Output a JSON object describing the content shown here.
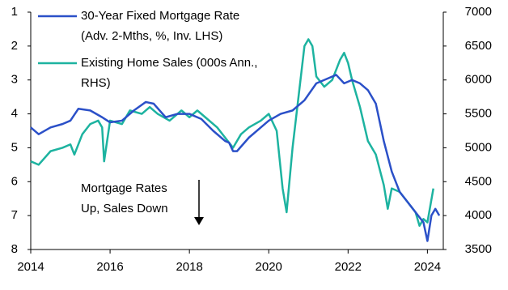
{
  "chart_data": {
    "type": "line",
    "series": [
      {
        "name": [
          "30-Year Fixed Mortgage Rate",
          "(Adv. 2-Mths, %, Inv. LHS)"
        ],
        "color": "#2b50c8",
        "axis": "y",
        "x": [
          2014.0,
          2014.2,
          2014.5,
          2014.8,
          2015.0,
          2015.2,
          2015.5,
          2015.8,
          2016.0,
          2016.3,
          2016.6,
          2016.9,
          2017.1,
          2017.4,
          2017.7,
          2018.0,
          2018.3,
          2018.6,
          2018.9,
          2019.0,
          2019.1,
          2019.2,
          2019.5,
          2019.8,
          2020.0,
          2020.3,
          2020.6,
          2020.9,
          2021.2,
          2021.5,
          2021.7,
          2021.9,
          2022.1,
          2022.3,
          2022.5,
          2022.7,
          2022.9,
          2023.1,
          2023.3,
          2023.5,
          2023.7,
          2023.9,
          2024.0,
          2024.1,
          2024.2,
          2024.3
        ],
        "values": [
          4.4,
          4.6,
          4.4,
          4.3,
          4.2,
          3.85,
          3.9,
          4.1,
          4.25,
          4.2,
          3.9,
          3.65,
          3.7,
          4.1,
          4.0,
          4.0,
          4.15,
          4.5,
          4.8,
          4.85,
          5.1,
          5.1,
          4.7,
          4.4,
          4.2,
          4.0,
          3.9,
          3.6,
          3.1,
          2.95,
          2.85,
          3.1,
          3.0,
          3.1,
          3.3,
          3.7,
          4.8,
          5.7,
          6.3,
          6.6,
          6.9,
          7.2,
          7.75,
          7.0,
          6.8,
          7.0
        ]
      },
      {
        "name": [
          "Existing Home Sales (000s Ann.,",
          "RHS)"
        ],
        "color": "#1db3a0",
        "axis": "y2",
        "x": [
          2014.0,
          2014.2,
          2014.5,
          2014.8,
          2015.0,
          2015.1,
          2015.3,
          2015.5,
          2015.7,
          2015.8,
          2015.85,
          2016.0,
          2016.3,
          2016.5,
          2016.8,
          2017.0,
          2017.2,
          2017.5,
          2017.8,
          2018.0,
          2018.2,
          2018.4,
          2018.7,
          2018.9,
          2019.1,
          2019.3,
          2019.5,
          2019.8,
          2020.0,
          2020.2,
          2020.35,
          2020.45,
          2020.6,
          2020.8,
          2020.9,
          2021.0,
          2021.1,
          2021.2,
          2021.4,
          2021.6,
          2021.8,
          2021.9,
          2022.0,
          2022.1,
          2022.3,
          2022.5,
          2022.7,
          2022.9,
          2023.0,
          2023.1,
          2023.3,
          2023.5,
          2023.7,
          2023.8,
          2023.9,
          2024.0,
          2024.15
        ],
        "values": [
          4800,
          4750,
          4950,
          5000,
          5050,
          4900,
          5200,
          5350,
          5400,
          5300,
          4800,
          5400,
          5350,
          5550,
          5500,
          5600,
          5500,
          5400,
          5550,
          5450,
          5550,
          5450,
          5300,
          5150,
          5000,
          5200,
          5300,
          5400,
          5500,
          5250,
          4400,
          4050,
          5000,
          6000,
          6500,
          6600,
          6500,
          6050,
          5900,
          6000,
          6300,
          6400,
          6250,
          6000,
          5600,
          5100,
          4900,
          4450,
          4100,
          4400,
          4350,
          4200,
          4050,
          3850,
          3950,
          3900,
          4400
        ]
      }
    ],
    "xlim": [
      2014,
      2024.4
    ],
    "xticks": [
      2014,
      2016,
      2018,
      2020,
      2022,
      2024
    ],
    "ylim": [
      8,
      1
    ],
    "yticks": [
      1,
      2,
      3,
      4,
      5,
      6,
      7,
      8
    ],
    "y2lim": [
      3500,
      7000
    ],
    "y2ticks": [
      3500,
      4000,
      4500,
      5000,
      5500,
      6000,
      6500,
      7000
    ],
    "annotation": [
      "Mortgage Rates",
      "Up, Sales Down"
    ]
  }
}
